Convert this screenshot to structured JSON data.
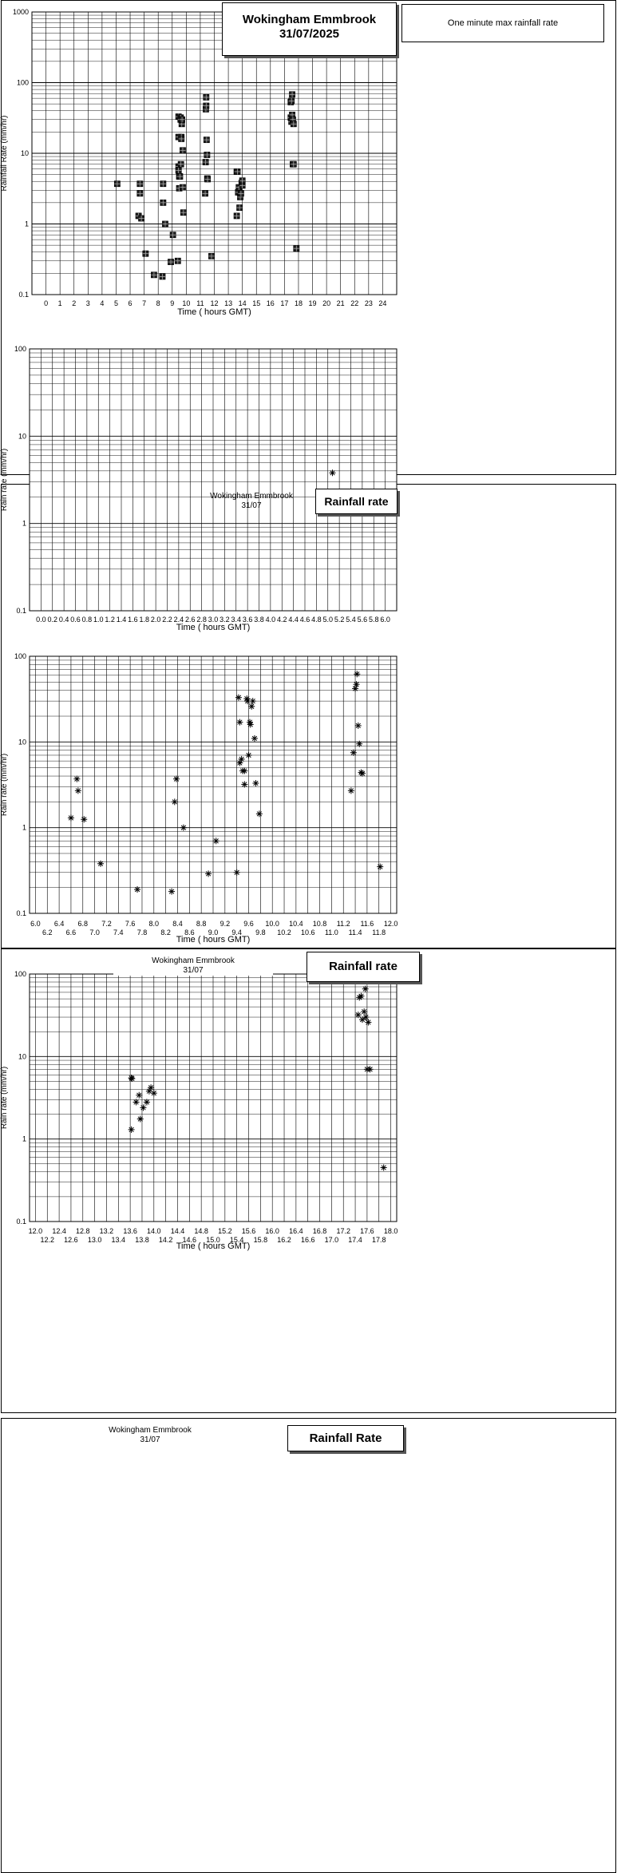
{
  "chart_data": [
    {
      "type": "scatter",
      "title": "Wokingham Emmbrook",
      "subtitle": "31/07/2025",
      "legend": "One minute max rainfall rate",
      "xlabel": "Time ( hours GMT)",
      "ylabel": "Rainfall Rate (mm/hr)",
      "xlim": [
        -1,
        25
      ],
      "ylim": [
        0.1,
        1000
      ],
      "yscale": "log",
      "xticks": [
        "0",
        "1",
        "2",
        "3",
        "4",
        "5",
        "6",
        "7",
        "8",
        "9",
        "10",
        "11",
        "12",
        "13",
        "14",
        "15",
        "16",
        "17",
        "18",
        "19",
        "20",
        "21",
        "22",
        "23",
        "24"
      ],
      "yticks": [
        "0.1",
        "1",
        "10",
        "100",
        "1000"
      ],
      "grid": true,
      "marker": "square-cross",
      "points": [
        [
          5.08,
          3.7
        ],
        [
          6.7,
          3.7
        ],
        [
          6.6,
          1.3
        ],
        [
          6.7,
          2.7
        ],
        [
          6.8,
          1.2
        ],
        [
          7.1,
          0.38
        ],
        [
          7.7,
          0.19
        ],
        [
          8.3,
          0.18
        ],
        [
          8.35,
          3.7
        ],
        [
          8.35,
          2.0
        ],
        [
          8.5,
          1.0
        ],
        [
          8.9,
          0.29
        ],
        [
          9.05,
          0.7
        ],
        [
          9.4,
          0.3
        ],
        [
          9.45,
          33
        ],
        [
          9.45,
          17
        ],
        [
          9.45,
          6.5
        ],
        [
          9.45,
          5.7
        ],
        [
          9.5,
          4.7
        ],
        [
          9.5,
          3.2
        ],
        [
          9.55,
          4.7
        ],
        [
          9.6,
          32
        ],
        [
          9.6,
          30
        ],
        [
          9.62,
          7
        ],
        [
          9.65,
          17
        ],
        [
          9.65,
          16
        ],
        [
          9.68,
          26
        ],
        [
          9.7,
          30
        ],
        [
          9.75,
          11
        ],
        [
          9.75,
          3.3
        ],
        [
          9.8,
          1.45
        ],
        [
          11.35,
          2.7
        ],
        [
          11.38,
          7.5
        ],
        [
          11.4,
          42
        ],
        [
          11.42,
          47
        ],
        [
          11.42,
          62
        ],
        [
          11.45,
          15.5
        ],
        [
          11.48,
          9.5
        ],
        [
          11.5,
          4.4
        ],
        [
          11.52,
          4.3
        ],
        [
          11.8,
          0.35
        ],
        [
          13.6,
          5.5
        ],
        [
          13.6,
          1.3
        ],
        [
          13.65,
          5.5
        ],
        [
          13.7,
          2.8
        ],
        [
          13.75,
          3.3
        ],
        [
          13.8,
          1.7
        ],
        [
          13.85,
          2.4
        ],
        [
          13.9,
          2.7
        ],
        [
          13.95,
          3.8
        ],
        [
          14.0,
          3.5
        ],
        [
          14.0,
          4.1
        ],
        [
          17.45,
          32
        ],
        [
          17.45,
          53
        ],
        [
          17.5,
          55
        ],
        [
          17.5,
          28
        ],
        [
          17.55,
          35
        ],
        [
          17.55,
          68
        ],
        [
          17.6,
          30
        ],
        [
          17.6,
          7
        ],
        [
          17.65,
          26
        ],
        [
          17.65,
          7
        ],
        [
          17.85,
          0.45
        ]
      ]
    },
    {
      "type": "scatter",
      "title": "Rainfall rate",
      "station": "Wokingham Emmbrook",
      "date": "31/07",
      "xlabel": "Time ( hours GMT)",
      "ylabel": "Rain rate (mm/hr)",
      "xlim": [
        -0.2,
        6.2
      ],
      "ylim": [
        0.1,
        100
      ],
      "yscale": "log",
      "xticks": [
        "0.0",
        "0.2",
        "0.4",
        "0.6",
        "0.8",
        "1.0",
        "1.2",
        "1.4",
        "1.6",
        "1.8",
        "2.0",
        "2.2",
        "2.4",
        "2.6",
        "2.8",
        "3.0",
        "3.2",
        "3.4",
        "3.6",
        "3.8",
        "4.0",
        "4.2",
        "4.4",
        "4.6",
        "4.8",
        "5.0",
        "5.2",
        "5.4",
        "5.6",
        "5.8",
        "6.0"
      ],
      "yticks": [
        "0.1",
        "1",
        "10",
        "100"
      ],
      "grid": true,
      "marker": "asterisk",
      "points": [
        [
          5.08,
          3.8
        ]
      ]
    },
    {
      "type": "scatter",
      "title": "Rainfall rate",
      "station": "Wokingham Emmbrook",
      "date": "31/07",
      "xlabel": "Time ( hours GMT)",
      "ylabel": "Rain rate (mm/hr)",
      "xlim": [
        5.9,
        12.1
      ],
      "ylim": [
        0.1,
        100
      ],
      "yscale": "log",
      "xticks_top": [
        "6.0",
        "6.4",
        "6.8",
        "7.2",
        "7.6",
        "8.0",
        "8.4",
        "8.8",
        "9.2",
        "9.6",
        "10.0",
        "10.4",
        "10.8",
        "11.2",
        "11.6",
        "12.0"
      ],
      "xticks_bottom": [
        "6.2",
        "6.6",
        "7.0",
        "7.4",
        "7.8",
        "8.2",
        "8.6",
        "9.0",
        "9.4",
        "9.8",
        "10.2",
        "10.6",
        "11.0",
        "11.4",
        "11.8"
      ],
      "yticks": [
        "0.1",
        "1",
        "10",
        "100"
      ],
      "grid": true,
      "marker": "asterisk",
      "points": [
        [
          6.7,
          3.7
        ],
        [
          6.6,
          1.3
        ],
        [
          6.72,
          2.7
        ],
        [
          6.82,
          1.25
        ],
        [
          7.1,
          0.38
        ],
        [
          7.72,
          0.19
        ],
        [
          8.3,
          0.18
        ],
        [
          8.38,
          3.7
        ],
        [
          8.35,
          2.0
        ],
        [
          8.5,
          1.0
        ],
        [
          8.92,
          0.29
        ],
        [
          9.05,
          0.7
        ],
        [
          9.4,
          0.3
        ],
        [
          9.43,
          33
        ],
        [
          9.45,
          17
        ],
        [
          9.45,
          5.7
        ],
        [
          9.48,
          6.3
        ],
        [
          9.5,
          4.6
        ],
        [
          9.53,
          4.6
        ],
        [
          9.53,
          3.2
        ],
        [
          9.57,
          32
        ],
        [
          9.58,
          30
        ],
        [
          9.6,
          7
        ],
        [
          9.62,
          17
        ],
        [
          9.63,
          16
        ],
        [
          9.65,
          26
        ],
        [
          9.67,
          30
        ],
        [
          9.7,
          11
        ],
        [
          9.72,
          3.3
        ],
        [
          9.78,
          1.45
        ],
        [
          11.33,
          2.7
        ],
        [
          11.37,
          7.5
        ],
        [
          11.4,
          42
        ],
        [
          11.42,
          47
        ],
        [
          11.43,
          62
        ],
        [
          11.45,
          15.5
        ],
        [
          11.47,
          9.5
        ],
        [
          11.5,
          4.4
        ],
        [
          11.52,
          4.3
        ],
        [
          11.82,
          0.35
        ]
      ]
    },
    {
      "type": "scatter",
      "title": "Rainfall Rate",
      "station": "Wokingham Emmbrook",
      "date": "31/07",
      "xlabel": "Time ( hours GMT)",
      "ylabel": "Rain rate (mm/hr)",
      "xlim": [
        11.9,
        18.1
      ],
      "ylim": [
        0.1,
        100
      ],
      "yscale": "log",
      "xticks_top": [
        "12.0",
        "12.4",
        "12.8",
        "13.2",
        "13.6",
        "14.0",
        "14.4",
        "14.8",
        "15.2",
        "15.6",
        "16.0",
        "16.4",
        "16.8",
        "17.2",
        "17.6",
        "18.0"
      ],
      "xticks_bottom": [
        "12.2",
        "12.6",
        "13.0",
        "13.4",
        "13.8",
        "14.2",
        "14.6",
        "15.0",
        "15.4",
        "15.8",
        "16.2",
        "16.6",
        "17.0",
        "17.4",
        "17.8"
      ],
      "yticks": [
        "0.1",
        "1",
        "10",
        "100"
      ],
      "grid": true,
      "marker": "asterisk",
      "points": [
        [
          13.62,
          5.5
        ],
        [
          13.63,
          5.4
        ],
        [
          13.62,
          1.3
        ],
        [
          13.7,
          2.8
        ],
        [
          13.75,
          3.4
        ],
        [
          13.77,
          1.75
        ],
        [
          13.82,
          2.4
        ],
        [
          13.88,
          2.8
        ],
        [
          13.92,
          3.8
        ],
        [
          13.95,
          4.2
        ],
        [
          14.0,
          3.6
        ],
        [
          17.45,
          32
        ],
        [
          17.47,
          52
        ],
        [
          17.5,
          54
        ],
        [
          17.52,
          28
        ],
        [
          17.55,
          35
        ],
        [
          17.57,
          66
        ],
        [
          17.58,
          30
        ],
        [
          17.6,
          7
        ],
        [
          17.62,
          26
        ],
        [
          17.65,
          7
        ],
        [
          17.88,
          0.45
        ]
      ]
    }
  ]
}
